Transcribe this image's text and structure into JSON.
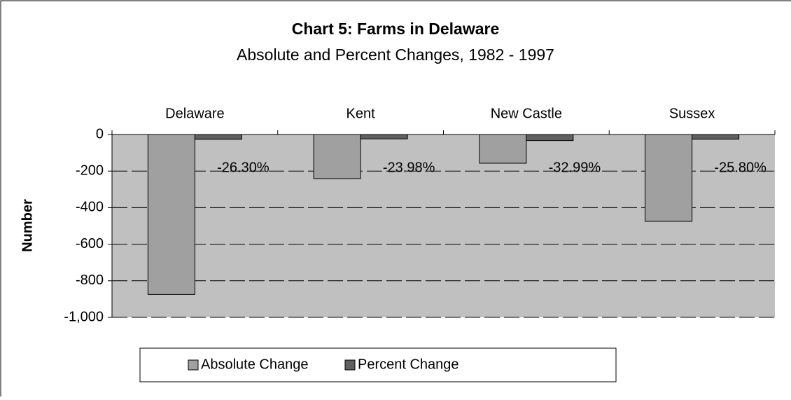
{
  "chart_data": {
    "type": "bar",
    "title": "Chart 5: Farms in Delaware",
    "subtitle": "Absolute and Percent Changes, 1982 - 1997",
    "y_axis_label": "Number",
    "categories": [
      "Delaware",
      "Kent",
      "New Castle",
      "Sussex"
    ],
    "series": [
      {
        "name": "Absolute Change",
        "color": "#a0a0a0",
        "values": [
          -875,
          -241,
          -157,
          -475
        ]
      },
      {
        "name": "Percent Change",
        "color": "#606060",
        "values": [
          -26.3,
          -23.98,
          -32.99,
          -25.8
        ],
        "value_labels": [
          "-26.30%",
          "-23.98%",
          "-32.99%",
          "-25.80%"
        ]
      }
    ],
    "ylim": [
      -1000,
      0
    ],
    "yticks": [
      0,
      -200,
      -400,
      -600,
      -800,
      {
        "value": -1000,
        "label": "-1,000"
      }
    ],
    "grid": true,
    "legend": "bottom"
  }
}
